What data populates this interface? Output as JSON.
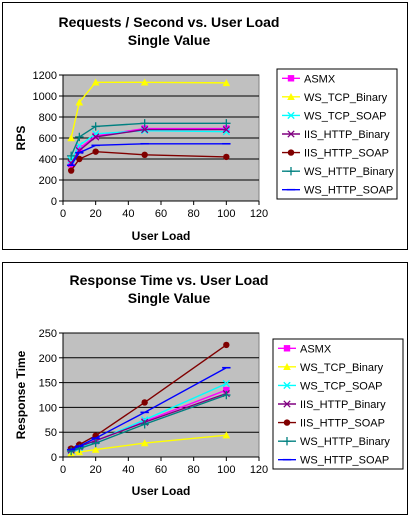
{
  "chart_data": [
    {
      "type": "line",
      "title": "Requests / Second  vs.  User Load",
      "subtitle": "Single Value",
      "xlabel": "User Load",
      "ylabel": "RPS",
      "xlim": [
        0,
        120
      ],
      "ylim": [
        0,
        1200
      ],
      "xticks": [
        0,
        20,
        40,
        60,
        80,
        100,
        120
      ],
      "yticks": [
        0,
        200,
        400,
        600,
        800,
        1000,
        1200
      ],
      "grid": "horizontal",
      "legend": "right",
      "series": [
        {
          "name": "ASMX",
          "color": "#ff00ff",
          "marker": "square",
          "x": [
            5,
            10,
            20,
            50,
            100
          ],
          "y": [
            350,
            500,
            620,
            690,
            690
          ]
        },
        {
          "name": "WS_TCP_Binary",
          "color": "#ffff00",
          "marker": "triangle",
          "x": [
            5,
            10,
            20,
            50,
            100
          ],
          "y": [
            600,
            940,
            1130,
            1130,
            1125
          ]
        },
        {
          "name": "WS_TCP_SOAP",
          "color": "#00ffff",
          "marker": "x",
          "x": [
            5,
            10,
            20,
            50,
            100
          ],
          "y": [
            390,
            530,
            640,
            670,
            660
          ]
        },
        {
          "name": "IIS_HTTP_Binary",
          "color": "#800080",
          "marker": "x",
          "x": [
            5,
            10,
            20,
            50,
            100
          ],
          "y": [
            360,
            480,
            610,
            680,
            680
          ]
        },
        {
          "name": "IIS_HTTP_SOAP",
          "color": "#800000",
          "marker": "circle",
          "x": [
            5,
            10,
            20,
            50,
            100
          ],
          "y": [
            290,
            400,
            470,
            440,
            420
          ]
        },
        {
          "name": "WS_HTTP_Binary",
          "color": "#008080",
          "marker": "plus",
          "x": [
            5,
            10,
            20,
            50,
            100
          ],
          "y": [
            430,
            610,
            710,
            740,
            740
          ]
        },
        {
          "name": "WS_HTTP_SOAP",
          "color": "#0000ff",
          "marker": "dash",
          "x": [
            5,
            10,
            20,
            50,
            100
          ],
          "y": [
            340,
            460,
            530,
            545,
            545
          ]
        }
      ]
    },
    {
      "type": "line",
      "title": "Response Time  vs.  User Load",
      "subtitle": "Single Value",
      "xlabel": "User Load",
      "ylabel": "Response Time",
      "xlim": [
        0,
        120
      ],
      "ylim": [
        0,
        250
      ],
      "xticks": [
        0,
        20,
        40,
        60,
        80,
        100,
        120
      ],
      "yticks": [
        0,
        50,
        100,
        150,
        200,
        250
      ],
      "grid": "horizontal",
      "legend": "right",
      "series": [
        {
          "name": "ASMX",
          "color": "#ff00ff",
          "marker": "square",
          "x": [
            5,
            10,
            20,
            50,
            100
          ],
          "y": [
            14,
            20,
            32,
            72,
            135
          ]
        },
        {
          "name": "WS_TCP_Binary",
          "color": "#ffff00",
          "marker": "triangle",
          "x": [
            5,
            10,
            20,
            50,
            100
          ],
          "y": [
            8,
            10,
            15,
            28,
            44
          ]
        },
        {
          "name": "WS_TCP_SOAP",
          "color": "#00ffff",
          "marker": "x",
          "x": [
            5,
            10,
            20,
            50,
            100
          ],
          "y": [
            13,
            19,
            32,
            75,
            148
          ]
        },
        {
          "name": "IIS_HTTP_Binary",
          "color": "#800080",
          "marker": "x",
          "x": [
            5,
            10,
            20,
            50,
            100
          ],
          "y": [
            14,
            21,
            33,
            70,
            128
          ]
        },
        {
          "name": "IIS_HTTP_SOAP",
          "color": "#800000",
          "marker": "circle",
          "x": [
            5,
            10,
            20,
            50,
            100
          ],
          "y": [
            17,
            25,
            43,
            110,
            226
          ]
        },
        {
          "name": "WS_HTTP_Binary",
          "color": "#008080",
          "marker": "plus",
          "x": [
            5,
            10,
            20,
            50,
            100
          ],
          "y": [
            12,
            17,
            28,
            66,
            125
          ]
        },
        {
          "name": "WS_HTTP_SOAP",
          "color": "#0000ff",
          "marker": "dash",
          "x": [
            5,
            10,
            20,
            50,
            100
          ],
          "y": [
            15,
            22,
            38,
            90,
            180
          ]
        }
      ]
    }
  ]
}
